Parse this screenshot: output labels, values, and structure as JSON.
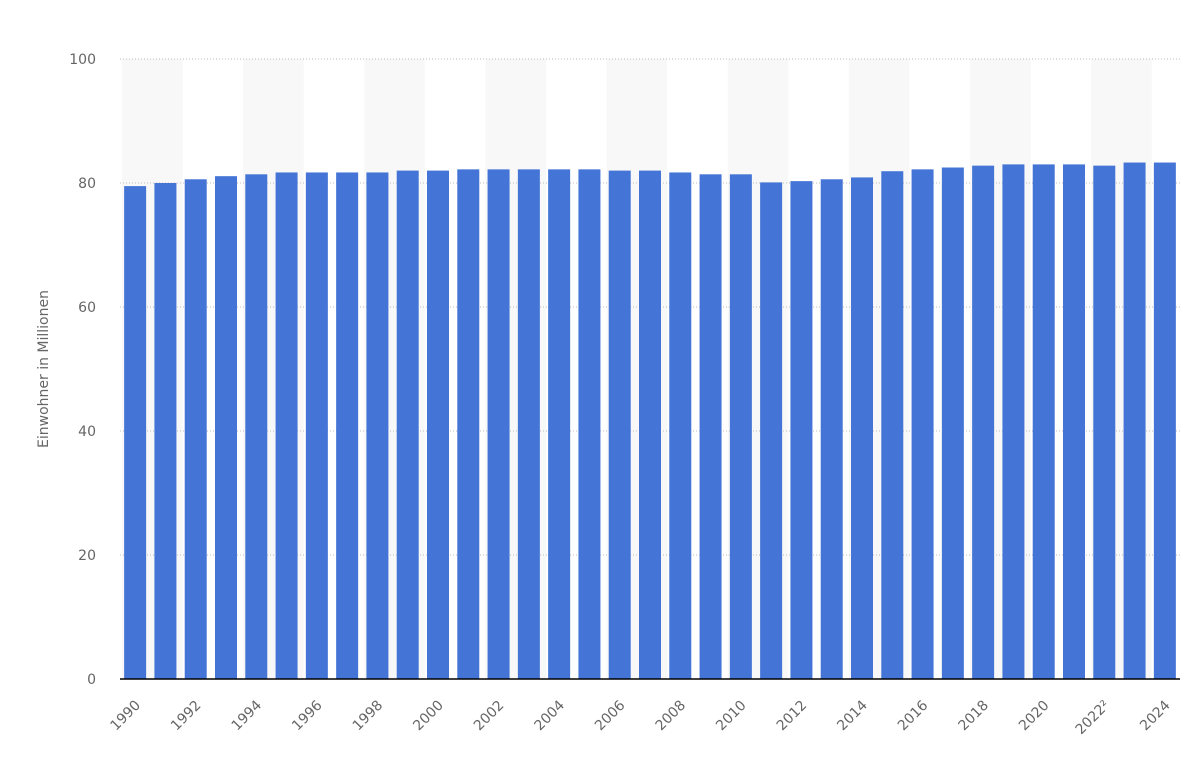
{
  "chart_data": {
    "type": "bar",
    "y_label": "Einwohner in Millionen",
    "categories": [
      "1990",
      null,
      "1992",
      null,
      "1994",
      null,
      "1996",
      null,
      "1998",
      null,
      "2000",
      null,
      "2002",
      null,
      "2004",
      null,
      "2006",
      null,
      "2008",
      null,
      "2010",
      null,
      "2012",
      null,
      "2014",
      null,
      "2016",
      null,
      "2018",
      null,
      "2020",
      null,
      "2022²",
      null,
      "2024"
    ],
    "values": [
      79.5,
      80.0,
      80.6,
      81.1,
      81.4,
      81.7,
      81.7,
      81.7,
      81.7,
      82.0,
      82.0,
      82.2,
      82.2,
      82.2,
      82.2,
      82.2,
      82.0,
      82.0,
      81.7,
      81.4,
      81.4,
      80.1,
      80.3,
      80.6,
      80.9,
      81.9,
      82.2,
      82.5,
      82.8,
      83.0,
      83.0,
      83.0,
      82.8,
      83.3,
      83.3
    ],
    "color": "#4374d6",
    "ylim": [
      0,
      100
    ],
    "yticks": [
      0,
      20,
      40,
      60,
      80,
      100
    ],
    "grid": true
  }
}
